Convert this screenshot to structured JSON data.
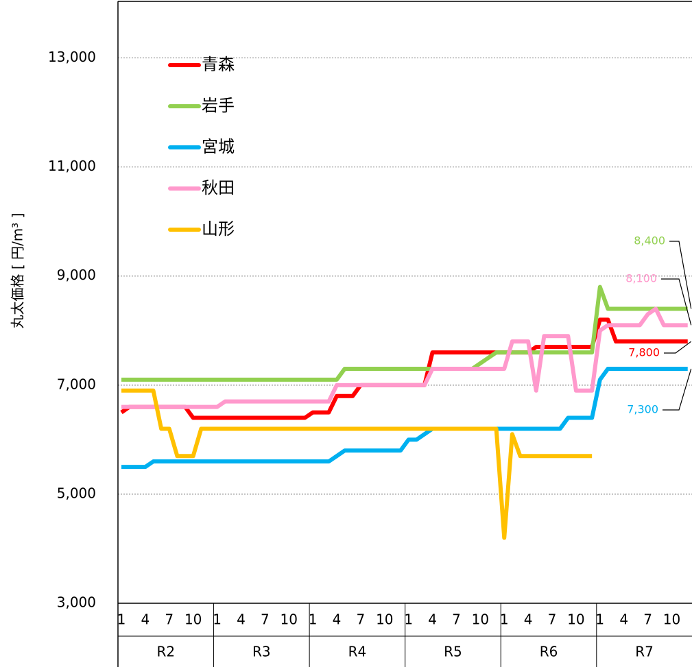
{
  "chart_data": {
    "type": "line",
    "y_label": "丸太価格 [ 円/m³ ]",
    "legend": "upper left",
    "grid": true,
    "ylim": [
      3000,
      14000
    ],
    "yticks": [
      {
        "value": 3000,
        "label": "3,000"
      },
      {
        "value": 5000,
        "label": "5,000"
      },
      {
        "value": 7000,
        "label": "7,000"
      },
      {
        "value": 9000,
        "label": "9,000"
      },
      {
        "value": 11000,
        "label": "11,000"
      },
      {
        "value": 13000,
        "label": "13,000"
      }
    ],
    "groups": [
      "R2",
      "R3",
      "R4",
      "R5",
      "R6",
      "R7"
    ],
    "categories": [
      "1",
      null,
      null,
      "4",
      null,
      null,
      "7",
      null,
      null,
      "10",
      null,
      null,
      "1",
      null,
      null,
      "4",
      null,
      null,
      "7",
      null,
      null,
      "10",
      null,
      null,
      "1",
      null,
      null,
      "4",
      null,
      null,
      "7",
      null,
      null,
      "10",
      null,
      null,
      "1",
      null,
      null,
      "4",
      null,
      null,
      "7",
      null,
      null,
      "10",
      null,
      null,
      "1",
      null,
      null,
      "4",
      null,
      null,
      "7",
      null,
      null,
      "10",
      null,
      null,
      "1",
      null,
      null,
      "4",
      null,
      null,
      "7",
      null,
      null,
      "10",
      null,
      null
    ],
    "series": [
      {
        "name": "青森",
        "color": "#ff0000",
        "values": [
          6500,
          6600,
          6600,
          6600,
          6600,
          6600,
          6600,
          6600,
          6600,
          6400,
          6400,
          6400,
          6400,
          6400,
          6400,
          6400,
          6400,
          6400,
          6400,
          6400,
          6400,
          6400,
          6400,
          6400,
          6500,
          6500,
          6500,
          6800,
          6800,
          6800,
          7000,
          7000,
          7000,
          7000,
          7000,
          7000,
          7000,
          7000,
          7000,
          7600,
          7600,
          7600,
          7600,
          7600,
          7600,
          7600,
          7600,
          7600,
          7600,
          7600,
          7600,
          7600,
          7700,
          7700,
          7700,
          7700,
          7700,
          7700,
          7700,
          7700,
          8200,
          8200,
          7800,
          7800,
          7800,
          7800,
          7800,
          7800,
          7800,
          7800,
          7800,
          7800
        ],
        "value_labels": [
          null,
          null,
          null,
          null,
          null,
          null,
          null,
          null,
          null,
          null,
          null,
          null,
          null,
          null,
          null,
          null,
          null,
          null,
          null,
          null,
          null,
          null,
          null,
          null,
          null,
          null,
          null,
          null,
          null,
          null,
          null,
          null,
          null,
          null,
          null,
          null,
          null,
          null,
          null,
          null,
          null,
          null,
          null,
          null,
          null,
          null,
          null,
          null,
          null,
          null,
          null,
          null,
          null,
          null,
          null,
          null,
          null,
          null,
          null,
          null,
          null,
          null,
          null,
          null,
          null,
          null,
          null,
          null,
          null,
          null,
          null,
          "7,800"
        ]
      },
      {
        "name": "岩手",
        "color": "#92d050",
        "values": [
          7100,
          7100,
          7100,
          7100,
          7100,
          7100,
          7100,
          7100,
          7100,
          7100,
          7100,
          7100,
          7100,
          7100,
          7100,
          7100,
          7100,
          7100,
          7100,
          7100,
          7100,
          7100,
          7100,
          7100,
          7100,
          7100,
          7100,
          7100,
          7300,
          7300,
          7300,
          7300,
          7300,
          7300,
          7300,
          7300,
          7300,
          7300,
          7300,
          7300,
          7300,
          7300,
          7300,
          7300,
          7300,
          7400,
          7500,
          7600,
          7600,
          7600,
          7600,
          7600,
          7600,
          7600,
          7600,
          7600,
          7600,
          7600,
          7600,
          7600,
          8800,
          8400,
          8400,
          8400,
          8400,
          8400,
          8400,
          8400,
          8400,
          8400,
          8400,
          8400
        ],
        "value_labels": [
          null,
          null,
          null,
          null,
          null,
          null,
          null,
          null,
          null,
          null,
          null,
          null,
          null,
          null,
          null,
          null,
          null,
          null,
          null,
          null,
          null,
          null,
          null,
          null,
          null,
          null,
          null,
          null,
          null,
          null,
          null,
          null,
          null,
          null,
          null,
          null,
          null,
          null,
          null,
          null,
          null,
          null,
          null,
          null,
          null,
          null,
          null,
          null,
          null,
          null,
          null,
          null,
          null,
          null,
          null,
          null,
          null,
          null,
          null,
          null,
          null,
          null,
          null,
          null,
          null,
          null,
          null,
          null,
          null,
          null,
          null,
          "8,400"
        ]
      },
      {
        "name": "宮城",
        "color": "#00b0f0",
        "values": [
          5500,
          5500,
          5500,
          5500,
          5600,
          5600,
          5600,
          5600,
          5600,
          5600,
          5600,
          5600,
          5600,
          5600,
          5600,
          5600,
          5600,
          5600,
          5600,
          5600,
          5600,
          5600,
          5600,
          5600,
          5600,
          5600,
          5600,
          5700,
          5800,
          5800,
          5800,
          5800,
          5800,
          5800,
          5800,
          5800,
          6000,
          6000,
          6100,
          6200,
          6200,
          6200,
          6200,
          6200,
          6200,
          6200,
          6200,
          6200,
          6200,
          6200,
          6200,
          6200,
          6200,
          6200,
          6200,
          6200,
          6400,
          6400,
          6400,
          6400,
          7100,
          7300,
          7300,
          7300,
          7300,
          7300,
          7300,
          7300,
          7300,
          7300,
          7300,
          7300
        ],
        "value_labels": [
          null,
          null,
          null,
          null,
          null,
          null,
          null,
          null,
          null,
          null,
          null,
          null,
          null,
          null,
          null,
          null,
          null,
          null,
          null,
          null,
          null,
          null,
          null,
          null,
          null,
          null,
          null,
          null,
          null,
          null,
          null,
          null,
          null,
          null,
          null,
          null,
          null,
          null,
          null,
          null,
          null,
          null,
          null,
          null,
          null,
          null,
          null,
          null,
          null,
          null,
          null,
          null,
          null,
          null,
          null,
          null,
          null,
          null,
          null,
          null,
          null,
          null,
          null,
          null,
          null,
          null,
          null,
          null,
          null,
          null,
          null,
          "7,300"
        ]
      },
      {
        "name": "秋田",
        "color": "#ff99cc",
        "values": [
          6600,
          6600,
          6600,
          6600,
          6600,
          6600,
          6600,
          6600,
          6600,
          6600,
          6600,
          6600,
          6600,
          6700,
          6700,
          6700,
          6700,
          6700,
          6700,
          6700,
          6700,
          6700,
          6700,
          6700,
          6700,
          6700,
          6700,
          7000,
          7000,
          7000,
          7000,
          7000,
          7000,
          7000,
          7000,
          7000,
          7000,
          7000,
          7000,
          7300,
          7300,
          7300,
          7300,
          7300,
          7300,
          7300,
          7300,
          7300,
          7300,
          7800,
          7800,
          7800,
          6900,
          7900,
          7900,
          7900,
          7900,
          6900,
          6900,
          6900,
          8000,
          8100,
          8100,
          8100,
          8100,
          8100,
          8300,
          8400,
          8100,
          8100,
          8100,
          8100
        ],
        "value_labels": [
          null,
          null,
          null,
          null,
          null,
          null,
          null,
          null,
          null,
          null,
          null,
          null,
          null,
          null,
          null,
          null,
          null,
          null,
          null,
          null,
          null,
          null,
          null,
          null,
          null,
          null,
          null,
          null,
          null,
          null,
          null,
          null,
          null,
          null,
          null,
          null,
          null,
          null,
          null,
          null,
          null,
          null,
          null,
          null,
          null,
          null,
          null,
          null,
          null,
          null,
          null,
          null,
          null,
          null,
          null,
          null,
          null,
          null,
          null,
          null,
          null,
          null,
          null,
          null,
          null,
          null,
          null,
          null,
          null,
          null,
          null,
          "8,100"
        ]
      },
      {
        "name": "山形",
        "color": "#ffc000",
        "values": [
          6900,
          6900,
          6900,
          6900,
          6900,
          6200,
          6200,
          5700,
          5700,
          5700,
          6200,
          6200,
          6200,
          6200,
          6200,
          6200,
          6200,
          6200,
          6200,
          6200,
          6200,
          6200,
          6200,
          6200,
          6200,
          6200,
          6200,
          6200,
          6200,
          6200,
          6200,
          6200,
          6200,
          6200,
          6200,
          6200,
          6200,
          6200,
          6200,
          6200,
          6200,
          6200,
          6200,
          6200,
          6200,
          6200,
          6200,
          6200,
          4200,
          6100,
          5700,
          5700,
          5700,
          5700,
          5700,
          5700,
          5700,
          5700,
          5700,
          5700,
          null,
          null,
          null,
          null,
          null,
          null,
          null,
          null,
          null,
          null,
          null,
          null
        ]
      }
    ]
  }
}
